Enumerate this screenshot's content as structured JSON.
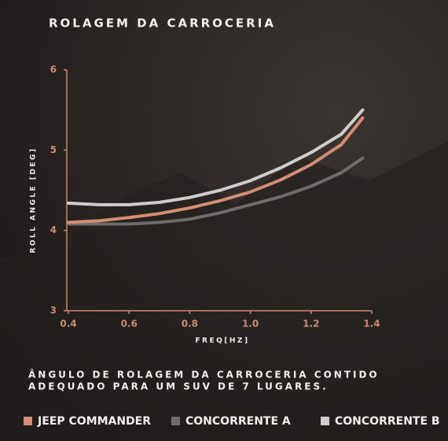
{
  "chart_data": {
    "type": "line",
    "title": "ROLAGEM DA CARROCERIA",
    "x_label": "FREQ[HZ]",
    "y_label": "ROLL ANGLE [DEG]",
    "x": [
      0.4,
      0.5,
      0.6,
      0.7,
      0.8,
      0.9,
      1.0,
      1.1,
      1.2,
      1.3,
      1.37
    ],
    "xlim": [
      0.4,
      1.4
    ],
    "xticks": [
      0.4,
      0.6,
      0.8,
      {
        "value": 1.0,
        "label": "1.0"
      },
      1.2,
      1.4
    ],
    "ylim": [
      3,
      6
    ],
    "yticks": [
      3,
      4,
      5,
      6
    ],
    "axis_color": "#c98a72",
    "series": [
      {
        "name": "JEEP COMMANDER",
        "color": "#d48d76",
        "values": [
          4.1,
          4.12,
          4.16,
          4.21,
          4.28,
          4.37,
          4.48,
          4.63,
          4.82,
          5.07,
          5.4
        ]
      },
      {
        "name": "CONCORRENTE A",
        "color": "#6e6c6a",
        "values": [
          4.08,
          4.08,
          4.08,
          4.1,
          4.14,
          4.22,
          4.32,
          4.42,
          4.55,
          4.72,
          4.9
        ]
      },
      {
        "name": "CONCORRENTE B",
        "color": "#cfcdcb",
        "values": [
          4.34,
          4.32,
          4.32,
          4.35,
          4.41,
          4.5,
          4.62,
          4.78,
          4.97,
          5.2,
          5.5
        ]
      }
    ],
    "note_lines": [
      "ÂNGULO DE ROLAGEM DA CARROCERIA CONTIDO",
      "ADEQUADO PARA UM SUV DE 7 LUGARES."
    ]
  }
}
